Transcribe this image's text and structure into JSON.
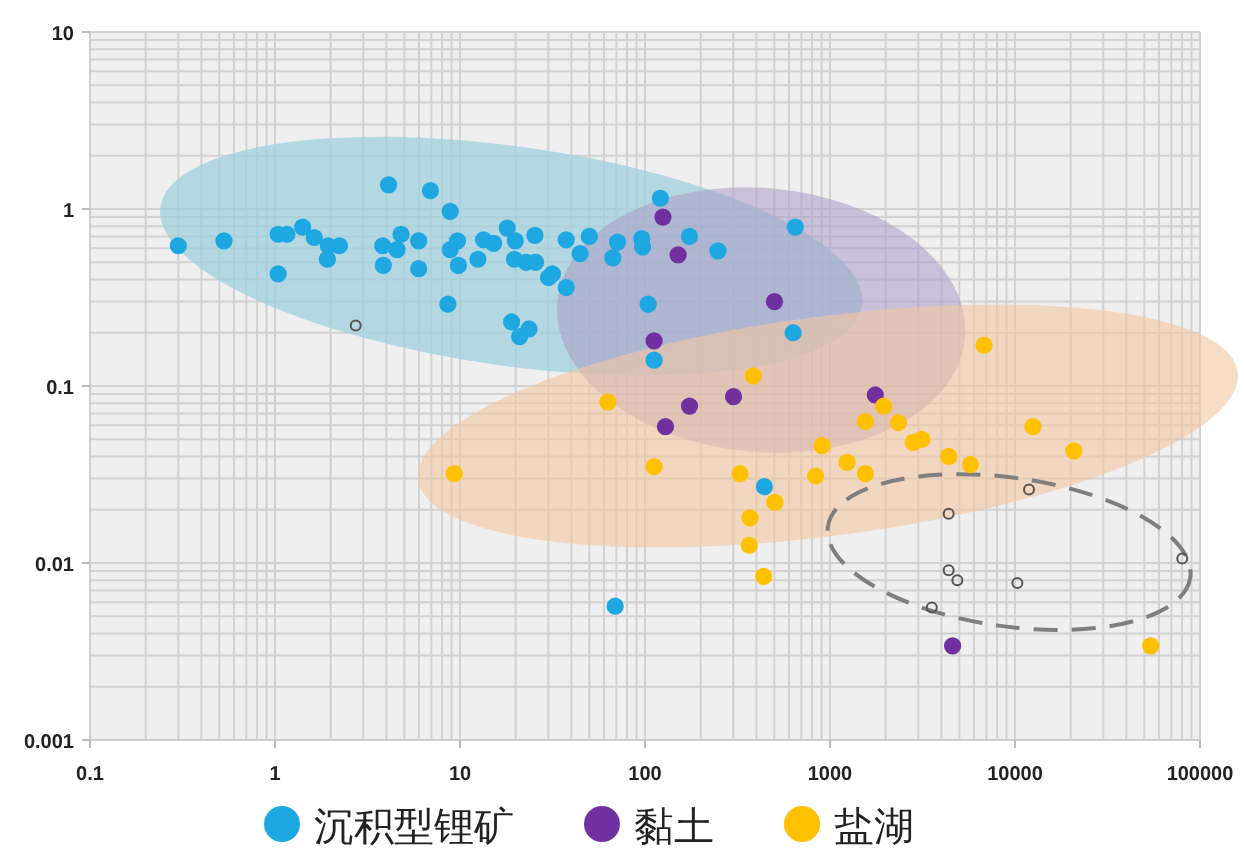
{
  "chart_data": {
    "type": "scatter",
    "log": "xy",
    "xlim": [
      0.1,
      100000
    ],
    "ylim": [
      0.001,
      10
    ],
    "xticks": [
      0.1,
      1,
      10,
      100,
      1000,
      10000,
      100000
    ],
    "yticks": [
      0.001,
      0.01,
      0.1,
      1,
      10
    ],
    "grid": true,
    "legend": "bottom",
    "marker": "circle",
    "series": [
      {
        "name": "沉积型锂矿",
        "color": "#1ea7e1",
        "x": [
          0.3,
          0.53,
          1.04,
          1.16,
          1.41,
          1.63,
          1.94,
          2.23,
          1.92,
          1.04,
          3.82,
          4.11,
          4.8,
          4.57,
          3.85,
          5.98,
          5.98,
          6.92,
          8.85,
          9.7,
          8.85,
          9.8,
          8.6,
          13.4,
          15.2,
          12.5,
          18,
          19.9,
          25.4,
          19.7,
          22.8,
          25.6,
          31.6,
          30.1,
          37.5,
          44.6,
          50,
          37.5,
          19,
          21,
          23.6,
          71,
          67,
          96,
          97,
          121,
          174,
          248,
          649,
          104,
          112,
          632,
          442,
          69
        ],
        "values": [
          0.62,
          0.66,
          0.72,
          0.72,
          0.79,
          0.69,
          0.62,
          0.62,
          0.52,
          0.43,
          0.62,
          1.37,
          0.72,
          0.59,
          0.48,
          0.66,
          0.46,
          1.27,
          0.97,
          0.66,
          0.59,
          0.48,
          0.29,
          0.67,
          0.64,
          0.52,
          0.78,
          0.66,
          0.71,
          0.52,
          0.5,
          0.5,
          0.43,
          0.41,
          0.67,
          0.56,
          0.7,
          0.36,
          0.23,
          0.19,
          0.21,
          0.65,
          0.53,
          0.68,
          0.61,
          1.15,
          0.7,
          0.58,
          0.79,
          0.29,
          0.14,
          0.2,
          0.027,
          0.0057
        ]
      },
      {
        "name": "黏土",
        "color": "#7030a0",
        "x": [
          125,
          151,
          112,
          129,
          174,
          301,
          501,
          1757,
          4600
        ],
        "values": [
          0.9,
          0.55,
          0.18,
          0.059,
          0.077,
          0.087,
          0.3,
          0.089,
          0.0034
        ]
      },
      {
        "name": "盐湖",
        "color": "#ffc000",
        "x": [
          9.3,
          63,
          385,
          112,
          326,
          504,
          369,
          366,
          438,
          906,
          836,
          1238,
          1553,
          1553,
          1950,
          2340,
          2820,
          3140,
          4380,
          5740,
          6810,
          12500,
          20800,
          54200
        ],
        "values": [
          0.032,
          0.081,
          0.114,
          0.035,
          0.032,
          0.022,
          0.018,
          0.0126,
          0.0084,
          0.046,
          0.031,
          0.037,
          0.063,
          0.032,
          0.077,
          0.062,
          0.048,
          0.05,
          0.04,
          0.036,
          0.17,
          0.059,
          0.043,
          0.0034
        ]
      },
      {
        "color": "#555555",
        "x": [
          2.73,
          4380,
          11900,
          4380,
          4880,
          10300,
          3550,
          80200
        ],
        "values": [
          0.22,
          0.019,
          0.026,
          0.0091,
          0.008,
          0.0077,
          0.0056,
          0.0106
        ]
      }
    ]
  }
}
